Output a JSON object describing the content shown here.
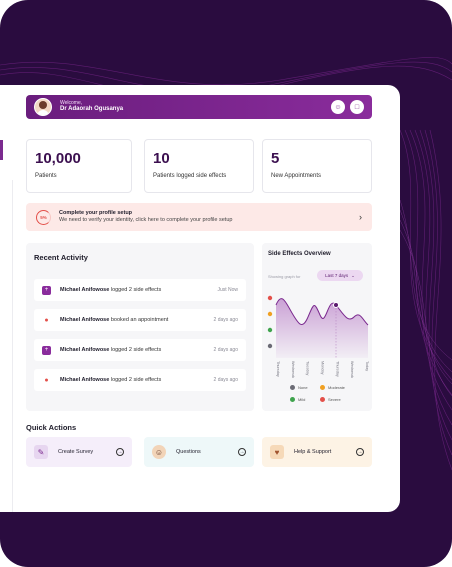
{
  "header": {
    "welcome": "Welcome,",
    "user_name": "Dr Adaorah Ogusanya"
  },
  "stats": [
    {
      "value": "10,000",
      "label": "Patients"
    },
    {
      "value": "10",
      "label": "Patients logged side effects"
    },
    {
      "value": "5",
      "label": "New Appointments"
    }
  ],
  "profile_banner": {
    "percent": "5%",
    "title": "Complete your profile setup",
    "description": "We need to verify your identity, click here to complete your profile setup"
  },
  "recent_activity": {
    "title": "Recent Activity",
    "items": [
      {
        "name": "Michael Anifowose",
        "action": "logged 2 side effects",
        "time": "Just Now",
        "icon": "plus-icon"
      },
      {
        "name": "Michael Anifowose",
        "action": "booked an appointment",
        "time": "2 days ago",
        "icon": "bell-icon"
      },
      {
        "name": "Michael Anifowose",
        "action": "logged 2 side effects",
        "time": "2 days ago",
        "icon": "plus-icon"
      },
      {
        "name": "Michael Anifowose",
        "action": "logged 2 side effects",
        "time": "2 days ago",
        "icon": "bell-icon"
      }
    ]
  },
  "side_effects": {
    "title": "Side Effects Overview",
    "show_label": "Showing graph for",
    "range": "Last 7 days",
    "days": [
      "Thursday",
      "Wednesday",
      "Tuesday",
      "Monday",
      "Thursday",
      "Wednesday",
      "Today"
    ],
    "legend": [
      {
        "label": "None",
        "color": "#6b6b75"
      },
      {
        "label": "Moderate",
        "color": "#f0a022"
      },
      {
        "label": "Mild",
        "color": "#3fa34d"
      },
      {
        "label": "Severe",
        "color": "#e3504a"
      }
    ]
  },
  "quick_actions": {
    "title": "Quick Actions",
    "items": [
      {
        "label": "Create Survey",
        "bg": "#f5eefa"
      },
      {
        "label": "Questions",
        "bg": "#eef8f9"
      },
      {
        "label": "Help & Support",
        "bg": "#fdf3e5"
      }
    ]
  },
  "colors": {
    "accent": "#7b2a8f",
    "background": "#2a0c3f"
  }
}
